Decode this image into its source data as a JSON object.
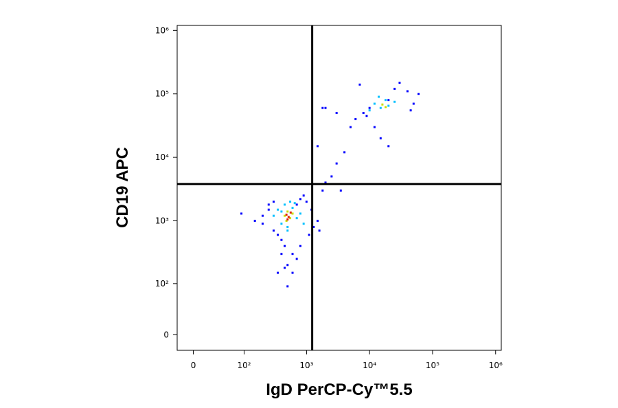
{
  "chart_data": {
    "type": "scatter",
    "x_label": "IgD PerCP-Cy™5.5",
    "y_label": "CD19 APC",
    "xlim": [
      -20,
      1230000
    ],
    "ylim": [
      -19,
      1200000
    ],
    "scale": "biexponential",
    "xticks": [
      0,
      {
        "value": 100,
        "label": "10²"
      },
      {
        "value": 1000,
        "label": "10³"
      },
      {
        "value": 10000,
        "label": "10⁴"
      },
      {
        "value": 100000,
        "label": "10⁵"
      },
      {
        "value": 1000000,
        "label": "10⁶"
      }
    ],
    "yticks": [
      0,
      {
        "value": 100,
        "label": "10²"
      },
      {
        "value": 1000,
        "label": "10³"
      },
      {
        "value": 10000,
        "label": "10⁴"
      },
      {
        "value": 100000,
        "label": "10⁵"
      },
      {
        "value": 1000000,
        "label": "10⁶"
      }
    ],
    "quadrant_gates": {
      "x": 1230,
      "y": 3800
    },
    "series": [
      {
        "color": "#0000ff",
        "x": [
          90,
          150,
          200,
          250,
          300,
          350,
          400,
          450,
          600,
          700,
          800,
          900,
          1000,
          1200,
          1500,
          1800,
          2000,
          250,
          300,
          400,
          500,
          600,
          700,
          350,
          450,
          500,
          200,
          800,
          1100,
          1300,
          1600,
          2500,
          3000,
          4000,
          5000,
          6000,
          8000,
          10000,
          12000,
          20000,
          25000,
          30000,
          40000,
          50000,
          60000,
          2000,
          3000,
          7000,
          9000,
          15000,
          3500,
          1500,
          1800,
          45000,
          20000
        ],
        "values": [
          1300,
          1000,
          900,
          1500,
          700,
          600,
          500,
          400,
          300,
          1800,
          2200,
          2500,
          2000,
          1500,
          1000,
          3000,
          4000,
          1800,
          2000,
          300,
          200,
          150,
          250,
          150,
          180,
          90,
          1200,
          400,
          600,
          800,
          700,
          5000,
          8000,
          12000,
          30000,
          40000,
          50000,
          60000,
          30000,
          80000,
          120000,
          150000,
          110000,
          70000,
          100000,
          60000,
          50000,
          140000,
          45000,
          20000,
          3000,
          15000,
          60000,
          55000,
          15000
        ]
      },
      {
        "color": "#00c0ff",
        "x": [
          300,
          350,
          400,
          450,
          500,
          550,
          600,
          700,
          800,
          900,
          400,
          500,
          650,
          12000,
          15000,
          18000,
          20000,
          25000,
          10000,
          14000
        ],
        "values": [
          1200,
          1500,
          900,
          1800,
          700,
          2000,
          1600,
          1100,
          1300,
          900,
          1400,
          800,
          1900,
          70000,
          60000,
          80000,
          65000,
          75000,
          55000,
          90000
        ]
      },
      {
        "color": "#c8e000",
        "x": [
          450,
          500,
          550,
          600,
          480,
          16000,
          18000
        ],
        "values": [
          1200,
          1400,
          1100,
          1300,
          1000,
          68000,
          62000
        ]
      },
      {
        "color": "#e02000",
        "x": [
          480,
          520,
          560,
          500
        ],
        "values": [
          1250,
          1150,
          1350,
          1050
        ]
      }
    ]
  }
}
